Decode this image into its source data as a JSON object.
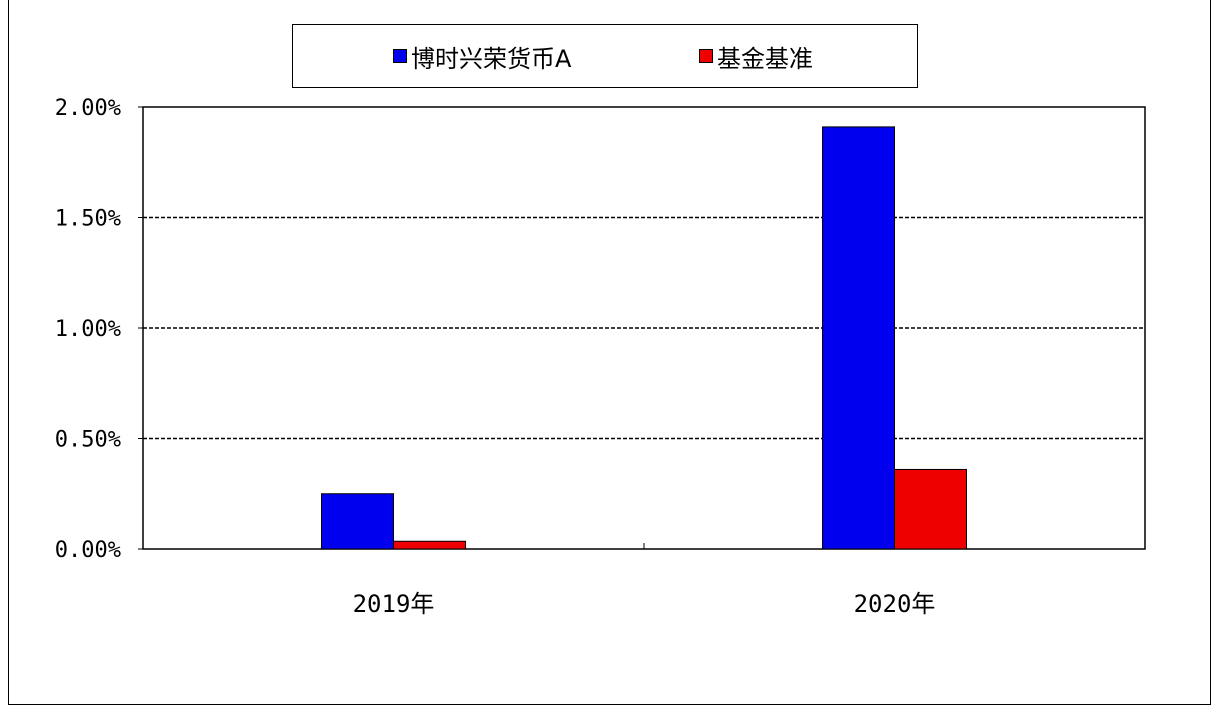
{
  "chart_data": {
    "type": "bar",
    "categories": [
      "2019年",
      "2020年"
    ],
    "series": [
      {
        "name": "博时兴荣货币A",
        "values": [
          0.25,
          1.91
        ],
        "color": "#0000ee"
      },
      {
        "name": "基金基准",
        "values": [
          0.035,
          0.36
        ],
        "color": "#ee0000"
      }
    ],
    "ylim": [
      0,
      2.0
    ],
    "yticks": [
      0,
      0.5,
      1.0,
      1.5,
      2.0
    ],
    "ytick_labels": [
      "0.00%",
      "0.50%",
      "1.00%",
      "1.50%",
      "2.00%"
    ],
    "grid": true,
    "legend_position": "top"
  }
}
